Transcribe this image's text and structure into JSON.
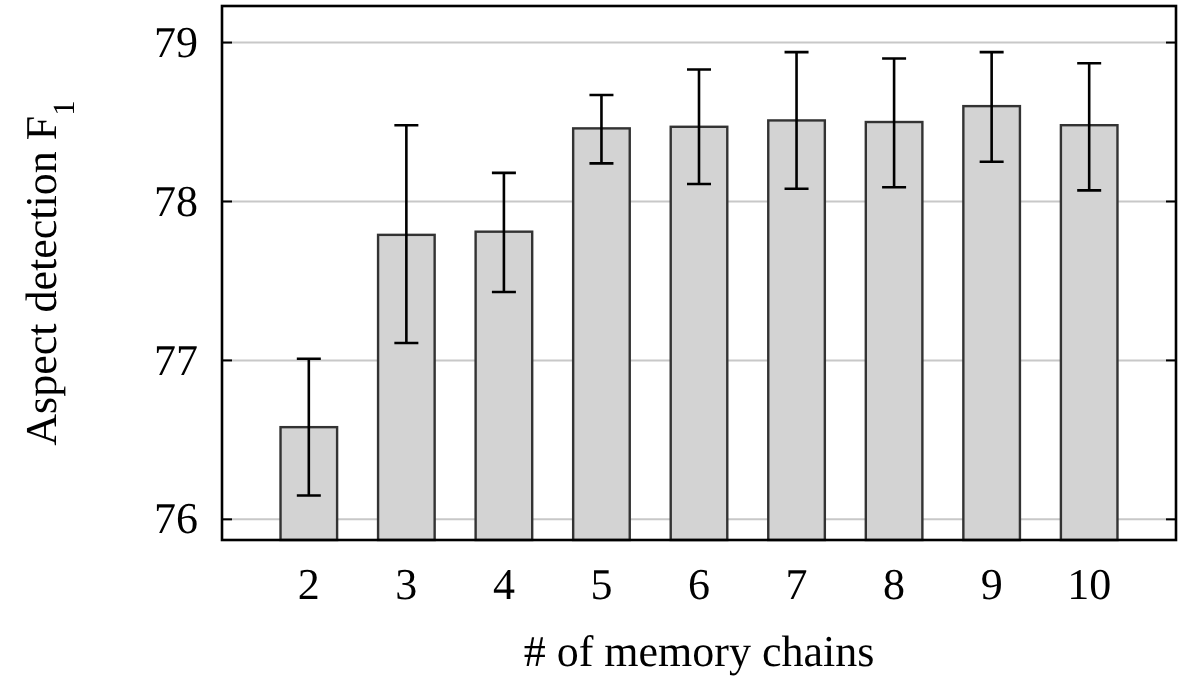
{
  "chart_data": {
    "type": "bar",
    "xlabel": "# of memory chains",
    "ylabel": "Aspect detection F$_{1}$",
    "categories": [
      "2",
      "3",
      "4",
      "5",
      "6",
      "7",
      "8",
      "9",
      "10"
    ],
    "values": [
      76.58,
      77.79,
      77.81,
      78.46,
      78.47,
      78.51,
      78.5,
      78.6,
      78.48
    ],
    "errors": [
      [
        76.15,
        77.01
      ],
      [
        77.11,
        78.48
      ],
      [
        77.43,
        78.18
      ],
      [
        78.24,
        78.67
      ],
      [
        78.11,
        78.83
      ],
      [
        78.08,
        78.94
      ],
      [
        78.09,
        78.9
      ],
      [
        78.25,
        78.94
      ],
      [
        78.07,
        78.87
      ]
    ],
    "color": "#d3d3d3",
    "ylim": [
      75.87,
      79.23
    ],
    "yticks": [
      76,
      77,
      78,
      79
    ],
    "grid": "y"
  }
}
